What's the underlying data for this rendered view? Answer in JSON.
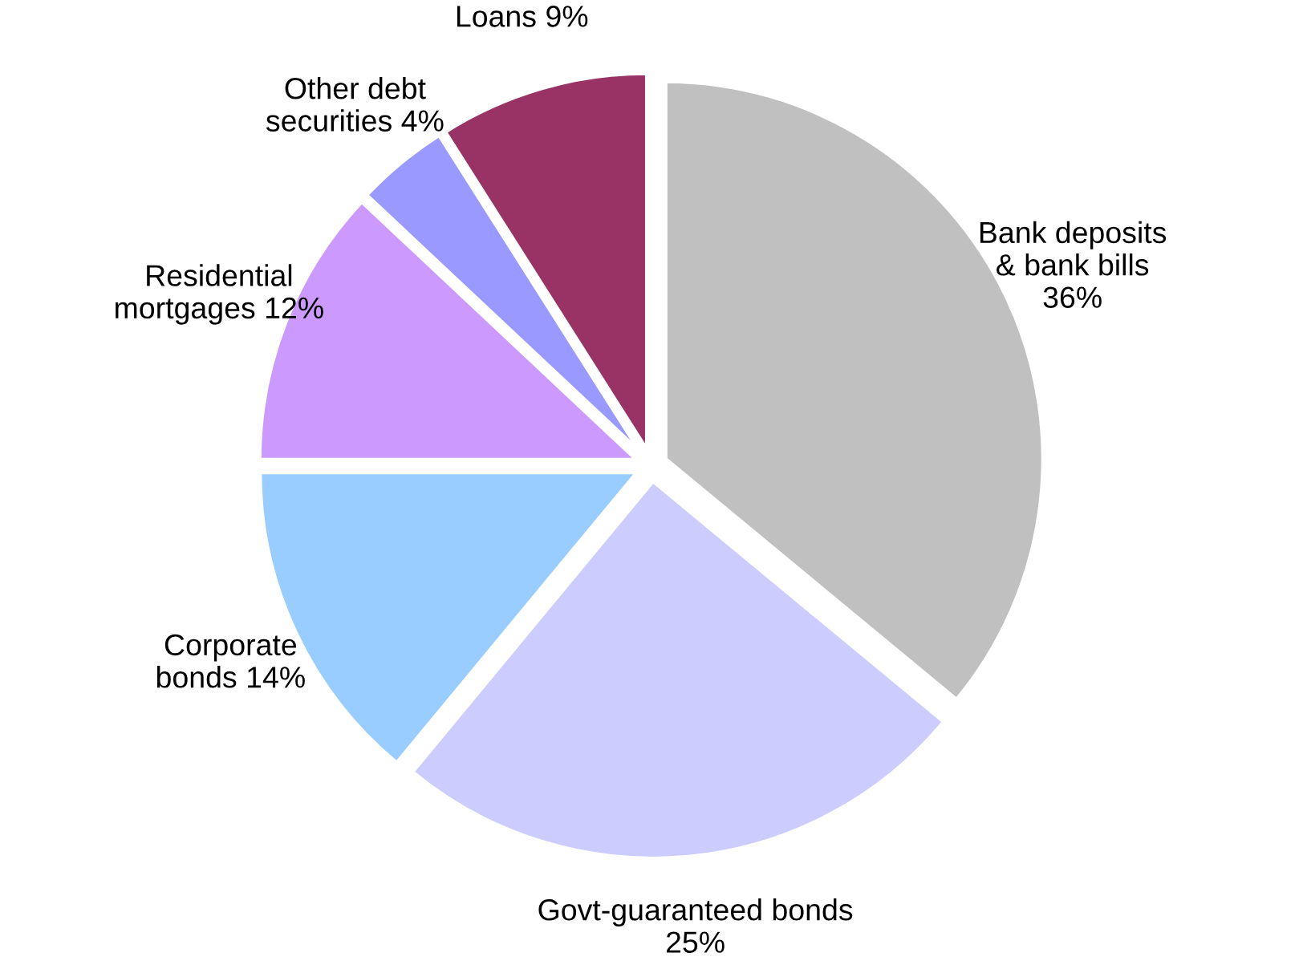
{
  "chart_data": {
    "type": "pie",
    "categories": [
      "Bank deposits\n& bank bills",
      "Govt-guaranteed bonds",
      "Corporate\nbonds",
      "Residential\nmortgages",
      "Other debt\nsecurities",
      "Loans"
    ],
    "values": [
      36,
      25,
      14,
      12,
      4,
      9
    ],
    "value_labels": [
      "36%",
      "25%",
      "14%",
      "12%",
      "4%",
      "9%"
    ],
    "colors": [
      "#c0c0c0",
      "#ccccff",
      "#99ccff",
      "#cc99ff",
      "#9999ff",
      "#993366"
    ],
    "legend": false
  }
}
